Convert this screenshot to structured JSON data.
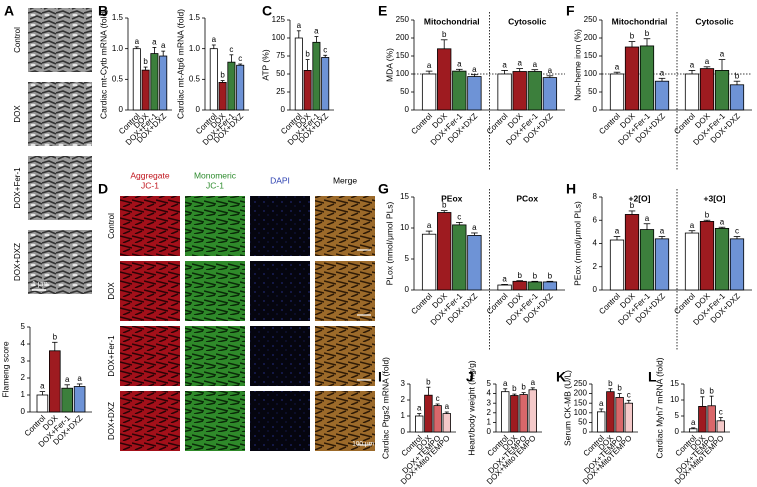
{
  "panel_labels": [
    "A",
    "B",
    "C",
    "D",
    "E",
    "F",
    "G",
    "H",
    "I",
    "J",
    "K",
    "L"
  ],
  "panel_a": {
    "image_labels": [
      "Control",
      "DOX",
      "DOX+Fer-1",
      "DOX+DXZ"
    ],
    "scale_bar": "1 μm"
  },
  "panel_d": {
    "columns": [
      {
        "lines": [
          "Aggregate",
          "JC-1"
        ],
        "color": "#c0141c"
      },
      {
        "lines": [
          "Monomeric",
          "JC-1"
        ],
        "color": "#2e8b2e"
      },
      {
        "lines": [
          "DAPI"
        ],
        "color": "#2a3fb0"
      },
      {
        "lines": [
          "Merge"
        ],
        "color": "#000000"
      }
    ],
    "rows": [
      "Control",
      "DOX",
      "DOX+Fer-1",
      "DOX+DXZ"
    ],
    "scale_bar": "100 μm"
  },
  "chart_data": [
    {
      "type": "bar",
      "y_label": "Flameng score",
      "categories": [
        "Control",
        "DOX",
        "DOX+Fer-1",
        "DOX+DXZ"
      ],
      "colors": [
        "#ffffff",
        "#9e1b20",
        "#3c7f3c",
        "#6e93d6"
      ],
      "values": [
        1.0,
        3.6,
        1.4,
        1.5
      ],
      "errors": [
        0.2,
        0.5,
        0.2,
        0.15
      ],
      "letters": [
        "a",
        "b",
        "a",
        "a"
      ],
      "ylim": [
        0,
        5
      ],
      "yticks": [
        0,
        1,
        2,
        3,
        4,
        5
      ]
    },
    {
      "type": "bar",
      "y_label": "Cardiac mt-Cytb mRNA (fold)",
      "categories": [
        "Control",
        "DOX",
        "DOX+Fer-1",
        "DOX+DXZ"
      ],
      "colors": [
        "#ffffff",
        "#9e1b20",
        "#3c7f3c",
        "#6e93d6"
      ],
      "values": [
        1.0,
        0.65,
        0.92,
        0.88
      ],
      "errors": [
        0.03,
        0.05,
        0.1,
        0.08
      ],
      "letters": [
        "a",
        "b",
        "a",
        "a"
      ],
      "ylim": [
        0,
        1.5
      ],
      "yticks": [
        0,
        0.5,
        {
          "value": 1,
          "label": "1.0"
        },
        1.5
      ]
    },
    {
      "type": "bar",
      "y_label": "Cardiac mt-Atp6 mRNA (fold)",
      "categories": [
        "Control",
        "DOX",
        "DOX+Fer-1",
        "DOX+DXZ"
      ],
      "colors": [
        "#ffffff",
        "#9e1b20",
        "#3c7f3c",
        "#6e93d6"
      ],
      "values": [
        1.0,
        0.45,
        0.78,
        0.73
      ],
      "errors": [
        0.06,
        0.03,
        0.12,
        0.02
      ],
      "letters": [
        "a",
        "b",
        "c",
        "c"
      ],
      "ylim": [
        0,
        1.5
      ],
      "yticks": [
        0,
        0.5,
        {
          "value": 1,
          "label": "1.0"
        },
        1.5
      ]
    },
    {
      "type": "bar",
      "y_label": "ATP (%)",
      "categories": [
        "Control",
        "DOX",
        "DOX+Fer-1",
        "DOX+DXZ"
      ],
      "colors": [
        "#ffffff",
        "#9e1b20",
        "#3c7f3c",
        "#6e93d6"
      ],
      "values": [
        100,
        55,
        94,
        73
      ],
      "errors": [
        10,
        15,
        8,
        3
      ],
      "letters": [
        "a",
        "b",
        "a",
        "c"
      ],
      "ylim": [
        0,
        125
      ],
      "yticks": [
        0,
        25,
        50,
        75,
        100,
        125
      ]
    },
    {
      "type": "bar",
      "y_label": "MDA (%)",
      "categories": [
        "Control",
        "DOX",
        "DOX+Fer-1",
        "DOX+DXZ"
      ],
      "colors": [
        "#ffffff",
        "#9e1b20",
        "#3c7f3c",
        "#6e93d6"
      ],
      "groups": [
        {
          "name": "Mitochondrial",
          "values": [
            100,
            170,
            108,
            93
          ],
          "errors": [
            8,
            25,
            5,
            5
          ],
          "letters": [
            "a",
            "b",
            "a",
            "a"
          ]
        },
        {
          "name": "Cytosolic",
          "values": [
            100,
            107,
            107,
            90
          ],
          "errors": [
            10,
            8,
            5,
            5
          ],
          "letters": [
            "a",
            "a",
            "a",
            "a"
          ]
        }
      ],
      "hline": 100,
      "ylim": [
        0,
        250
      ],
      "yticks": [
        0,
        50,
        100,
        150,
        200,
        250
      ]
    },
    {
      "type": "bar",
      "y_label": "Non-heme iron (%)",
      "categories": [
        "Control",
        "DOX",
        "DOX+Fer-1",
        "DOX+DXZ"
      ],
      "colors": [
        "#ffffff",
        "#9e1b20",
        "#3c7f3c",
        "#6e93d6"
      ],
      "groups": [
        {
          "name": "Mitochondrial",
          "values": [
            100,
            175,
            178,
            80
          ],
          "errors": [
            5,
            15,
            20,
            8
          ],
          "letters": [
            "a",
            "b",
            "b",
            "a"
          ]
        },
        {
          "name": "Cytosolic",
          "values": [
            100,
            115,
            110,
            70
          ],
          "errors": [
            10,
            5,
            30,
            10
          ],
          "letters": [
            "a",
            "a",
            "a",
            "b"
          ]
        }
      ],
      "hline": 100,
      "ylim": [
        0,
        250
      ],
      "yticks": [
        0,
        50,
        100,
        150,
        200,
        250
      ]
    },
    {
      "type": "bar",
      "y_label": "PLox (nmol/μmol PLs)",
      "categories": [
        "Control",
        "DOX",
        "DOX+Fer-1",
        "DOX+DXZ"
      ],
      "colors": [
        "#ffffff",
        "#9e1b20",
        "#3c7f3c",
        "#6e93d6"
      ],
      "groups": [
        {
          "name": "PEox",
          "values": [
            9.0,
            12.5,
            10.5,
            8.8
          ],
          "errors": [
            0.5,
            0.3,
            0.4,
            0.4
          ],
          "letters": [
            "a",
            "b",
            "c",
            "a"
          ]
        },
        {
          "name": "PCox",
          "values": [
            0.8,
            1.4,
            1.3,
            1.3
          ],
          "errors": [
            0.1,
            0.1,
            0.1,
            0.1
          ],
          "letters": [
            "a",
            "b",
            "b",
            "b"
          ]
        }
      ],
      "ylim": [
        0,
        15
      ],
      "yticks": [
        0,
        5,
        10,
        15
      ]
    },
    {
      "type": "bar",
      "y_label": "PEox (nmol/μmol PLs)",
      "categories": [
        "Control",
        "DOX",
        "DOX+Fer-1",
        "DOX+DXZ"
      ],
      "colors": [
        "#ffffff",
        "#9e1b20",
        "#3c7f3c",
        "#6e93d6"
      ],
      "groups": [
        {
          "name": "+2[O]",
          "values": [
            4.3,
            6.5,
            5.2,
            4.4
          ],
          "errors": [
            0.3,
            0.3,
            0.5,
            0.2
          ],
          "letters": [
            "a",
            "b",
            "a",
            "a"
          ]
        },
        {
          "name": "+3[O]",
          "values": [
            4.9,
            5.9,
            5.3,
            4.4
          ],
          "errors": [
            0.2,
            0.1,
            0.1,
            0.2
          ],
          "letters": [
            "a",
            "b",
            "a",
            "c"
          ]
        }
      ],
      "ylim": [
        0,
        8
      ],
      "yticks": [
        0,
        2,
        4,
        6,
        8
      ]
    },
    {
      "type": "bar",
      "y_label": "Cardiac Ptgs2 mRNA (fold)",
      "categories": [
        "Control",
        "DOX",
        "DOX+TEMPO",
        "DOX+MitoTEMPO"
      ],
      "colors": [
        "#ffffff",
        "#9e1b20",
        "#d9676a",
        "#f4c9c9"
      ],
      "values": [
        1.0,
        2.3,
        1.65,
        1.15
      ],
      "errors": [
        0.15,
        0.5,
        0.1,
        0.1
      ],
      "letters": [
        "a",
        "b",
        "c",
        "a"
      ],
      "ylim": [
        0,
        3
      ],
      "yticks": [
        0,
        1,
        2,
        3
      ]
    },
    {
      "type": "bar",
      "y_label": "Heart/body weight (mg/g)",
      "categories": [
        "Control",
        "DOX",
        "DOX+TEMPO",
        "DOX+MitoTEMPO"
      ],
      "colors": [
        "#ffffff",
        "#9e1b20",
        "#d9676a",
        "#f4c9c9"
      ],
      "values": [
        4.2,
        3.8,
        3.9,
        4.4
      ],
      "errors": [
        0.3,
        0.15,
        0.2,
        0.2
      ],
      "letters": [
        "a",
        "b",
        "b",
        "a"
      ],
      "ylim": [
        0,
        5
      ],
      "yticks": [
        0,
        1,
        2,
        3,
        4,
        5
      ]
    },
    {
      "type": "bar",
      "y_label": "Serum CK-MB (U/L)",
      "categories": [
        "Control",
        "DOX",
        "DOX+TEMPO",
        "DOX+MitoTEMPO"
      ],
      "colors": [
        "#ffffff",
        "#9e1b20",
        "#d9676a",
        "#f4c9c9"
      ],
      "values": [
        105,
        210,
        180,
        150
      ],
      "errors": [
        15,
        15,
        20,
        15
      ],
      "letters": [
        "a",
        "b",
        "b",
        "c"
      ],
      "ylim": [
        0,
        250
      ],
      "yticks": [
        0,
        50,
        100,
        150,
        200,
        250
      ]
    },
    {
      "type": "bar",
      "y_label": "Cardiac Myh7 mRNA (fold)",
      "categories": [
        "Control",
        "DOX",
        "DOX+TEMPO",
        "DOX+MitoTEMPO"
      ],
      "colors": [
        "#ffffff",
        "#9e1b20",
        "#d9676a",
        "#f4c9c9"
      ],
      "values": [
        1.0,
        8.0,
        8.2,
        3.5
      ],
      "errors": [
        0.3,
        3,
        3,
        1
      ],
      "letters": [
        "a",
        "b",
        "b",
        "c"
      ],
      "ylim": [
        0,
        15
      ],
      "yticks": [
        0,
        5,
        10,
        15
      ]
    }
  ]
}
